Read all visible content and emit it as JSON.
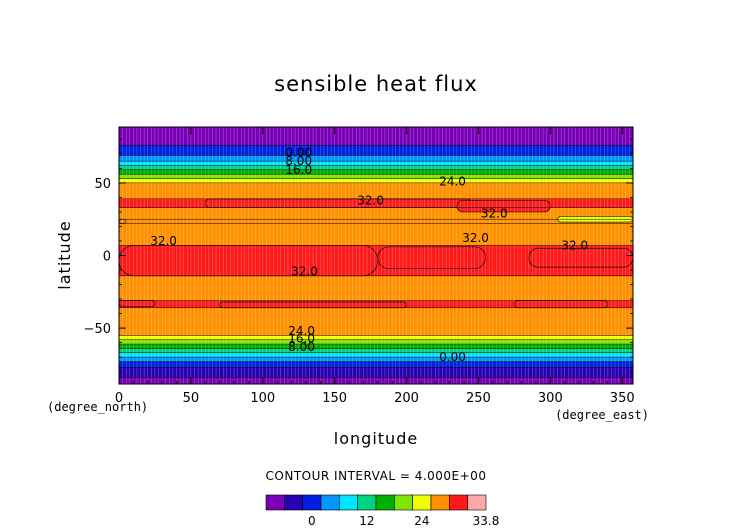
{
  "chart_data": {
    "type": "heatmap",
    "title": "sensible heat flux",
    "xlabel": "longitude",
    "ylabel": "latitude",
    "x_unit": "(degree_east)",
    "y_unit": "(degree_north)",
    "xlim": [
      0,
      357.5
    ],
    "ylim": [
      -88.5,
      88.5
    ],
    "x_ticks": [
      0,
      50,
      100,
      150,
      200,
      250,
      300,
      350
    ],
    "y_ticks": [
      -50,
      0,
      50
    ],
    "contour_interval_text": "CONTOUR INTERVAL = 4.000E+00",
    "colorbar": {
      "levels": [
        -8,
        -4,
        0,
        4,
        8,
        12,
        16,
        20,
        24,
        28,
        32,
        33.8
      ],
      "colors": [
        "#7a00b8",
        "#2a00b4",
        "#0020e0",
        "#0096ff",
        "#00e6ff",
        "#00d282",
        "#00b000",
        "#7ee600",
        "#f0ff00",
        "#ff9000",
        "#ff1a1a",
        "#ffa8a8"
      ],
      "tick_labels": [
        {
          "value": 0,
          "label": "0"
        },
        {
          "value": 12,
          "label": "12"
        },
        {
          "value": 24,
          "label": "24"
        },
        {
          "value": 33.8,
          "label": "33.8"
        }
      ]
    },
    "zonal_profile": [
      {
        "lat_range": [
          -88.5,
          -84
        ],
        "value": -6
      },
      {
        "lat_range": [
          -84,
          -77
        ],
        "value": -2
      },
      {
        "lat_range": [
          -77,
          -73
        ],
        "value": 2
      },
      {
        "lat_range": [
          -73,
          -70
        ],
        "value": 6
      },
      {
        "lat_range": [
          -70,
          -67
        ],
        "value": 10
      },
      {
        "lat_range": [
          -67,
          -64
        ],
        "value": 14
      },
      {
        "lat_range": [
          -64,
          -61
        ],
        "value": 18
      },
      {
        "lat_range": [
          -61,
          -58
        ],
        "value": 22
      },
      {
        "lat_range": [
          -58,
          -55
        ],
        "value": 26
      },
      {
        "lat_range": [
          -55,
          -36
        ],
        "value": 30
      },
      {
        "lat_range": [
          -36,
          -31
        ],
        "value": 32.5
      },
      {
        "lat_range": [
          -31,
          -14
        ],
        "value": 30
      },
      {
        "lat_range": [
          -14,
          7
        ],
        "value": 32.5
      },
      {
        "lat_range": [
          7,
          22
        ],
        "value": 30
      },
      {
        "lat_range": [
          22,
          25
        ],
        "value": 30
      },
      {
        "lat_range": [
          25,
          33
        ],
        "value": 30
      },
      {
        "lat_range": [
          33,
          39
        ],
        "value": 32.5
      },
      {
        "lat_range": [
          39,
          50
        ],
        "value": 30
      },
      {
        "lat_range": [
          50,
          53
        ],
        "value": 26
      },
      {
        "lat_range": [
          53,
          56
        ],
        "value": 22
      },
      {
        "lat_range": [
          56,
          59
        ],
        "value": 18
      },
      {
        "lat_range": [
          59,
          62
        ],
        "value": 14
      },
      {
        "lat_range": [
          62,
          65
        ],
        "value": 10
      },
      {
        "lat_range": [
          65,
          69
        ],
        "value": 6
      },
      {
        "lat_range": [
          69,
          76
        ],
        "value": 2
      },
      {
        "lat_range": [
          76,
          88.5
        ],
        "value": -6
      }
    ],
    "high_patches": [
      {
        "lon": [
          0,
          180
        ],
        "lat": [
          -14,
          7
        ],
        "value": 32.5
      },
      {
        "lon": [
          180,
          255
        ],
        "lat": [
          -9,
          6
        ],
        "value": 32.5
      },
      {
        "lon": [
          285,
          357.5
        ],
        "lat": [
          -8,
          5
        ],
        "value": 32.5
      },
      {
        "lon": [
          60,
          245
        ],
        "lat": [
          33,
          39
        ],
        "value": 32.5
      },
      {
        "lon": [
          235,
          300
        ],
        "lat": [
          30,
          38
        ],
        "value": 32.5
      },
      {
        "lon": [
          0,
          25
        ],
        "lat": [
          -35,
          -31
        ],
        "value": 32.5
      },
      {
        "lon": [
          70,
          200
        ],
        "lat": [
          -36,
          -32
        ],
        "value": 32.5
      },
      {
        "lon": [
          275,
          340
        ],
        "lat": [
          -36,
          -31
        ],
        "value": 32.5
      }
    ],
    "orange_patches": [
      {
        "lon": [
          0,
          5
        ],
        "lat": [
          22,
          25
        ],
        "value": 30
      },
      {
        "lon": [
          305,
          357.5
        ],
        "lat": [
          23,
          27
        ],
        "value": 26
      }
    ],
    "contour_labels": [
      {
        "text": "0.00",
        "lon": 125,
        "lat": 71
      },
      {
        "text": "8.00",
        "lon": 125,
        "lat": 65
      },
      {
        "text": "16.0",
        "lon": 125,
        "lat": 59
      },
      {
        "text": "24.0",
        "lon": 232,
        "lat": 51
      },
      {
        "text": "32.0",
        "lon": 175,
        "lat": 38
      },
      {
        "text": "32.0",
        "lon": 261,
        "lat": 29
      },
      {
        "text": "32.0",
        "lon": 31,
        "lat": 10
      },
      {
        "text": "32.0",
        "lon": 248,
        "lat": 12
      },
      {
        "text": "32.0",
        "lon": 317,
        "lat": 7
      },
      {
        "text": "32.0",
        "lon": 129,
        "lat": -11
      },
      {
        "text": "24.0",
        "lon": 127,
        "lat": -52
      },
      {
        "text": "16.0",
        "lon": 127,
        "lat": -57
      },
      {
        "text": "8.00",
        "lon": 127,
        "lat": -63
      },
      {
        "text": "0.00",
        "lon": 232,
        "lat": -70
      }
    ]
  }
}
